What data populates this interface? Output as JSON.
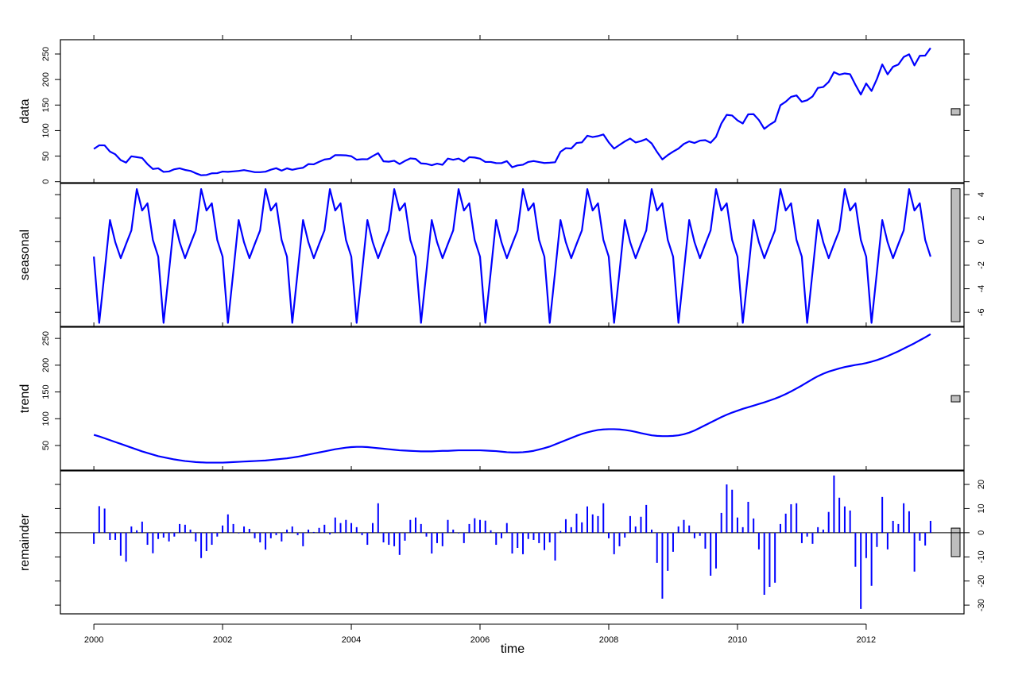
{
  "chart_data": {
    "type": "line",
    "xlabel": "time",
    "x": [
      2000,
      2000.083,
      2000.167,
      2000.25,
      2000.333,
      2000.417,
      2000.5,
      2000.583,
      2000.667,
      2000.75,
      2000.833,
      2000.917,
      2001,
      2001.083,
      2001.167,
      2001.25,
      2001.333,
      2001.417,
      2001.5,
      2001.583,
      2001.667,
      2001.75,
      2001.833,
      2001.917,
      2002,
      2002.083,
      2002.167,
      2002.25,
      2002.333,
      2002.417,
      2002.5,
      2002.583,
      2002.667,
      2002.75,
      2002.833,
      2002.917,
      2003,
      2003.083,
      2003.167,
      2003.25,
      2003.333,
      2003.417,
      2003.5,
      2003.583,
      2003.667,
      2003.75,
      2003.833,
      2003.917,
      2004,
      2004.083,
      2004.167,
      2004.25,
      2004.333,
      2004.417,
      2004.5,
      2004.583,
      2004.667,
      2004.75,
      2004.833,
      2004.917,
      2005,
      2005.083,
      2005.167,
      2005.25,
      2005.333,
      2005.417,
      2005.5,
      2005.583,
      2005.667,
      2005.75,
      2005.833,
      2005.917,
      2006,
      2006.083,
      2006.167,
      2006.25,
      2006.333,
      2006.417,
      2006.5,
      2006.583,
      2006.667,
      2006.75,
      2006.833,
      2006.917,
      2007,
      2007.083,
      2007.167,
      2007.25,
      2007.333,
      2007.417,
      2007.5,
      2007.583,
      2007.667,
      2007.75,
      2007.833,
      2007.917,
      2008,
      2008.083,
      2008.167,
      2008.25,
      2008.333,
      2008.417,
      2008.5,
      2008.583,
      2008.667,
      2008.75,
      2008.833,
      2008.917,
      2009,
      2009.083,
      2009.167,
      2009.25,
      2009.333,
      2009.417,
      2009.5,
      2009.583,
      2009.667,
      2009.75,
      2009.833,
      2009.917,
      2010,
      2010.083,
      2010.167,
      2010.25,
      2010.333,
      2010.417,
      2010.5,
      2010.583,
      2010.667,
      2010.75,
      2010.833,
      2010.917,
      2011,
      2011.083,
      2011.167,
      2011.25,
      2011.333,
      2011.417,
      2011.5,
      2011.583,
      2011.667,
      2011.75,
      2011.833,
      2011.917,
      2012,
      2012.083,
      2012.167,
      2012.25,
      2012.333,
      2012.417,
      2012.5,
      2012.583,
      2012.667,
      2012.75,
      2012.833,
      2012.917,
      2013
    ],
    "xlim": [
      1999.48,
      2013.52
    ],
    "xticks": [
      2000,
      2002,
      2004,
      2006,
      2008,
      2010,
      2012
    ],
    "series": [
      {
        "name": "data",
        "type": "line",
        "color": "#0000ff",
        "ylim": [
          -2,
          278
        ],
        "yticks": [
          0,
          50,
          100,
          150,
          200,
          250
        ],
        "tick_side": "left",
        "scale_bar": [
          130.4,
          142.9
        ],
        "values": [
          64.1,
          71.1,
          71.0,
          58.8,
          53.5,
          42.1,
          37.3,
          49.6,
          48.0,
          46.3,
          34.3,
          24.7,
          26.1,
          19.1,
          19.9,
          24.2,
          26.1,
          22.9,
          21.1,
          16.4,
          12.5,
          13.1,
          16.3,
          16.6,
          19.7,
          19.2,
          20.1,
          21.0,
          22.6,
          20.7,
          18.5,
          18.5,
          19.5,
          23.4,
          26.3,
          21.6,
          26.0,
          23.2,
          25.5,
          27.2,
          34.3,
          33.9,
          38.8,
          43.3,
          44.8,
          52.0,
          51.8,
          51.5,
          49.7,
          42.9,
          43.9,
          43.8,
          50.0,
          55.8,
          39.8,
          39.0,
          40.9,
          34.5,
          40.5,
          45.5,
          44.5,
          35.7,
          34.9,
          32.2,
          35.2,
          33.0,
          45.1,
          42.8,
          45.2,
          39.4,
          47.9,
          47.2,
          45.0,
          38.6,
          38.5,
          36.3,
          36.2,
          40.1,
          28.2,
          31.7,
          33.1,
          38.6,
          40.3,
          38.4,
          36.5,
          37.1,
          38.0,
          58.5,
          65.6,
          64.9,
          75.7,
          76.8,
          89.9,
          87.3,
          89.2,
          92.4,
          76.9,
          64.7,
          71.9,
          78.8,
          84.4,
          76.7,
          79.4,
          83.5,
          74.8,
          58.2,
          43.5,
          51.9,
          58.8,
          64.7,
          73.8,
          78.8,
          75.7,
          80.3,
          81.2,
          76.2,
          87.7,
          113.9,
          130.8,
          129.5,
          120.0,
          113.9,
          131.8,
          132.2,
          120.6,
          103.4,
          111.4,
          117.8,
          149.6,
          156.6,
          166.1,
          168.9,
          156.4,
          159.5,
          166.9,
          183.6,
          185.3,
          195.2,
          214.5,
          209.5,
          211.9,
          210.4,
          189.7,
          170.6,
          192.2,
          177.6,
          201.1,
          229.6,
          210.1,
          225.0,
          229.4,
          244.2,
          249.4,
          227.6,
          246.5,
          246.9,
          261.6
        ]
      },
      {
        "name": "seasonal",
        "type": "line",
        "color": "#0000ff",
        "ylim": [
          -7.2,
          4.95
        ],
        "yticks": [
          -6,
          -4,
          -2,
          0,
          2,
          4
        ],
        "tick_side": "right",
        "scale_bar": [
          -6.8,
          4.5
        ],
        "values": [
          -1.27,
          -6.9,
          -2.55,
          1.84,
          -0.05,
          -1.4,
          -0.2,
          0.96,
          4.47,
          2.65,
          3.26,
          0.15,
          -1.27,
          -6.9,
          -2.55,
          1.84,
          -0.05,
          -1.4,
          -0.2,
          0.96,
          4.47,
          2.65,
          3.26,
          0.15,
          -1.27,
          -6.9,
          -2.55,
          1.84,
          -0.05,
          -1.4,
          -0.2,
          0.96,
          4.47,
          2.65,
          3.26,
          0.15,
          -1.27,
          -6.9,
          -2.55,
          1.84,
          -0.05,
          -1.4,
          -0.2,
          0.96,
          4.47,
          2.65,
          3.26,
          0.15,
          -1.27,
          -6.9,
          -2.55,
          1.84,
          -0.05,
          -1.4,
          -0.2,
          0.96,
          4.47,
          2.65,
          3.26,
          0.15,
          -1.27,
          -6.9,
          -2.55,
          1.84,
          -0.05,
          -1.4,
          -0.2,
          0.96,
          4.47,
          2.65,
          3.26,
          0.15,
          -1.27,
          -6.9,
          -2.55,
          1.84,
          -0.05,
          -1.4,
          -0.2,
          0.96,
          4.47,
          2.65,
          3.26,
          0.15,
          -1.27,
          -6.9,
          -2.55,
          1.84,
          -0.05,
          -1.4,
          -0.2,
          0.96,
          4.47,
          2.65,
          3.26,
          0.15,
          -1.27,
          -6.9,
          -2.55,
          1.84,
          -0.05,
          -1.4,
          -0.2,
          0.96,
          4.47,
          2.65,
          3.26,
          0.15,
          -1.27,
          -6.9,
          -2.55,
          1.84,
          -0.05,
          -1.4,
          -0.2,
          0.96,
          4.47,
          2.65,
          3.26,
          0.15,
          -1.27,
          -6.9,
          -2.55,
          1.84,
          -0.05,
          -1.4,
          -0.2,
          0.96,
          4.47,
          2.65,
          3.26,
          0.15,
          -1.27,
          -6.9,
          -2.55,
          1.84,
          -0.05,
          -1.4,
          -0.2,
          0.96,
          4.47,
          2.65,
          3.26,
          0.15,
          -1.27,
          -6.9,
          -2.55,
          1.84,
          -0.05,
          -1.4,
          -0.2,
          0.96,
          4.47,
          2.65,
          3.26,
          0.15,
          -1.27
        ]
      },
      {
        "name": "trend",
        "type": "line",
        "color": "#0000ff",
        "ylim": [
          4,
          271
        ],
        "yticks": [
          50,
          100,
          150,
          200,
          250
        ],
        "tick_side": "left",
        "scale_bar": [
          131.5,
          143.3
        ],
        "values": [
          70,
          67,
          63.5,
          60,
          56.5,
          53,
          49.5,
          46,
          42.5,
          39,
          36,
          33,
          30,
          28,
          26,
          24,
          22.5,
          21,
          20,
          19,
          18.5,
          18,
          18,
          18,
          18,
          18.5,
          19,
          19.5,
          20,
          20.5,
          21,
          21.5,
          22,
          23,
          24,
          25,
          26,
          27.5,
          29,
          31,
          33,
          35,
          37,
          39,
          41,
          43,
          44.5,
          46,
          47,
          47.5,
          47.5,
          47,
          46,
          45,
          44,
          43,
          42,
          41,
          40.5,
          40,
          39.5,
          39,
          39,
          39,
          39.5,
          40,
          40,
          40.5,
          41,
          41,
          41,
          41,
          41,
          40.5,
          40,
          39.5,
          38.5,
          37.5,
          37,
          37,
          37.5,
          38.5,
          40,
          42.5,
          45,
          48,
          52,
          56,
          60,
          64,
          68,
          71.5,
          74.5,
          77,
          79,
          80,
          80.5,
          80.5,
          80,
          79,
          77.5,
          75.5,
          73,
          71,
          69,
          68,
          67.5,
          67.5,
          68,
          69,
          71,
          74,
          78,
          83,
          88,
          93,
          98,
          103,
          107.5,
          111.5,
          115,
          118.5,
          121.5,
          124.5,
          127.5,
          130.5,
          134,
          137.5,
          141.5,
          146,
          151,
          156.5,
          162,
          168,
          174,
          179.5,
          184,
          188,
          191,
          194,
          196.5,
          198.5,
          200.5,
          202,
          204,
          206.5,
          209.5,
          213,
          217,
          221.5,
          226,
          231,
          236,
          241,
          246.5,
          252,
          258
        ]
      },
      {
        "name": "remainder",
        "type": "bar",
        "color": "#0000ff",
        "ylim": [
          -33.6,
          25.6
        ],
        "yticks": [
          -30,
          -20,
          -10,
          0,
          10,
          20
        ],
        "tick_side": "right",
        "scale_bar": [
          -9.9,
          1.9
        ],
        "baseline": 0,
        "values": [
          -4.6,
          11,
          10,
          -3,
          -3,
          -9.5,
          -12,
          2.6,
          1,
          4.6,
          -5,
          -8.5,
          -2.6,
          -2,
          -3.6,
          -1.6,
          3.6,
          3.3,
          1.3,
          -3.6,
          -10.5,
          -7.6,
          -5,
          -1.6,
          3,
          7.6,
          3.6,
          -0.3,
          2.6,
          1.6,
          -2.3,
          -4,
          -7,
          -2.3,
          -1,
          -3.6,
          1.3,
          2.6,
          -1,
          -5.6,
          1.3,
          0.3,
          2,
          3.3,
          -0.7,
          6.3,
          4,
          5.3,
          4,
          2.3,
          -1,
          -5,
          4,
          12.2,
          -4,
          -5,
          -5.6,
          -9.2,
          -3.3,
          5.3,
          6.3,
          3.6,
          -1.6,
          -8.6,
          -4.3,
          -5.6,
          5.3,
          1.3,
          -0.3,
          -4.3,
          3.6,
          6,
          5.3,
          5,
          1,
          -5,
          -2.3,
          4,
          -8.6,
          -6.3,
          -8.9,
          -2.6,
          -3,
          -4.3,
          -7.2,
          -4,
          -11.5,
          0.7,
          5.6,
          2.3,
          7.9,
          4.3,
          10.9,
          7.6,
          6.9,
          12.2,
          -2.3,
          -8.9,
          -5.6,
          -2,
          6.9,
          2.6,
          6.6,
          11.5,
          1.3,
          -12.5,
          -27.3,
          -15.8,
          -7.9,
          2.6,
          5.3,
          3,
          -2.3,
          -1.3,
          -6.6,
          -17.8,
          -14.8,
          8.2,
          20,
          17.8,
          6.3,
          2.3,
          12.8,
          5.9,
          -6.9,
          -25.7,
          -22.4,
          -20.7,
          3.6,
          7.9,
          11.8,
          12.2,
          -4.3,
          -1.6,
          -4.6,
          2.3,
          1.3,
          8.6,
          23.7,
          14.5,
          10.9,
          9.2,
          -14.1,
          -31.6,
          -10.5,
          -22,
          -5.9,
          14.8,
          -6.9,
          4.9,
          3.6,
          12.2,
          8.9,
          -16.1,
          -3.3,
          -5.3,
          4.9
        ]
      }
    ]
  }
}
